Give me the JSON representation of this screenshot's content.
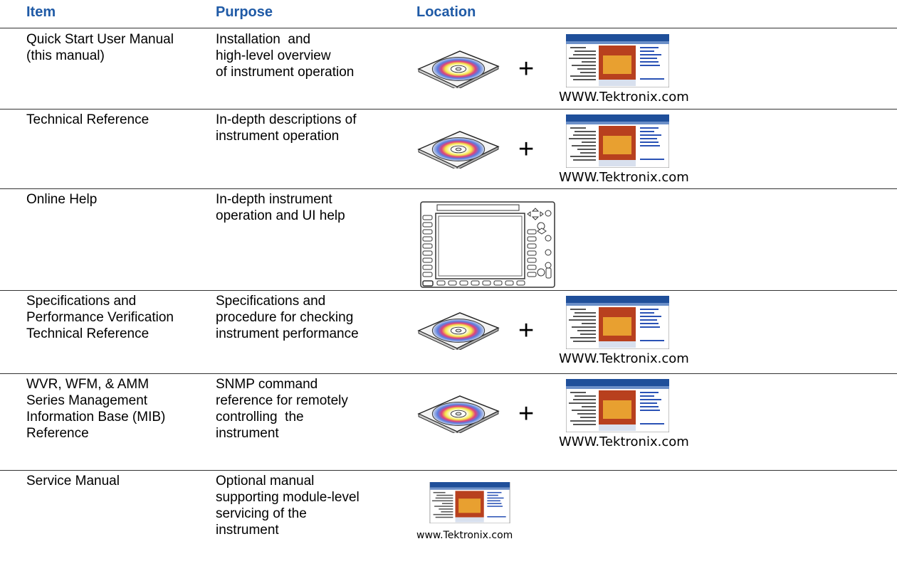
{
  "table": {
    "headers": [
      "Item",
      "Purpose",
      "Location"
    ],
    "rows": [
      {
        "item": [
          "Quick Start User Manual",
          "(this manual)"
        ],
        "purpose": [
          "Installation  and",
          "high-level overview",
          "of instrument operation"
        ],
        "joiner": "+",
        "caption": "WWW.Tektronix.com"
      },
      {
        "item": [
          "Technical Reference"
        ],
        "purpose": [
          "In-depth descriptions of",
          "instrument operation"
        ],
        "joiner": "+",
        "caption": "WWW.Tektronix.com"
      },
      {
        "item": [
          "Online Help"
        ],
        "purpose": [
          "In-depth instrument",
          "operation and UI help"
        ]
      },
      {
        "item": [
          "Specifications and",
          "Performance Verification",
          "Technical Reference"
        ],
        "purpose": [
          "Specifications and",
          "procedure for checking",
          "instrument performance"
        ],
        "joiner": "+",
        "caption": "WWW.Tektronix.com"
      },
      {
        "item": [
          "WVR, WFM, & AMM",
          "Series Management",
          "Information Base (MIB)",
          "Reference"
        ],
        "purpose": [
          "SNMP command",
          "reference for remotely",
          "controlling  the",
          "instrument"
        ],
        "joiner": "+",
        "caption": "WWW.Tektronix.com"
      },
      {
        "item": [
          "Service Manual"
        ],
        "purpose": [
          "Optional manual",
          "supporting module-level",
          "servicing of the",
          "instrument"
        ],
        "caption": "www.Tektronix.com"
      }
    ]
  }
}
